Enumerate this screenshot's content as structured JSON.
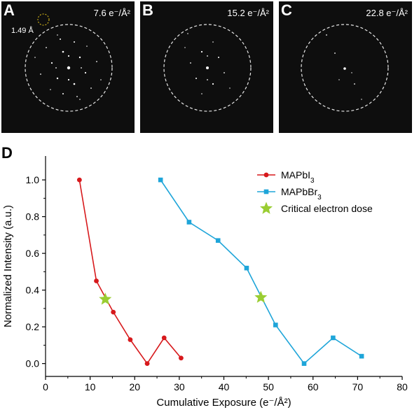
{
  "panels": [
    {
      "letter": "A",
      "dose": "7.6 e⁻/Å²",
      "resolution": "1.49 Å"
    },
    {
      "letter": "B",
      "dose": "15.2 e⁻/Å²"
    },
    {
      "letter": "C",
      "dose": "22.8 e⁻/Å²"
    }
  ],
  "panel_d_letter": "D",
  "chart_data": {
    "type": "line",
    "xlabel": "Cumulative Exposure (e⁻/Å²)",
    "ylabel": "Normalized Intensity (a.u.)",
    "xlim": [
      0,
      80
    ],
    "ylim": [
      -0.07,
      1.13
    ],
    "xticks": [
      "0",
      "10",
      "20",
      "30",
      "40",
      "50",
      "60",
      "70",
      "80"
    ],
    "yticks": [
      "0.0",
      "0.2",
      "0.4",
      "0.6",
      "0.8",
      "1.0"
    ],
    "legend_position": "top-right",
    "series": [
      {
        "name": "MAPbI3",
        "color": "#d7191c",
        "marker": "circle",
        "x": [
          7.6,
          11.4,
          15.2,
          19.0,
          22.8,
          26.6,
          30.4
        ],
        "y": [
          1.0,
          0.45,
          0.28,
          0.13,
          0.0,
          0.14,
          0.03
        ]
      },
      {
        "name": "MAPbBr3",
        "color": "#1ea5d9",
        "marker": "square",
        "x": [
          25.8,
          32.2,
          38.7,
          45.1,
          51.6,
          58.0,
          64.5,
          70.9
        ],
        "y": [
          1.0,
          0.77,
          0.67,
          0.52,
          0.21,
          0.0,
          0.14,
          0.04
        ]
      },
      {
        "name": "Critical electron dose",
        "color": "#9acd32",
        "marker": "star",
        "x": [
          13.4,
          48.3
        ],
        "y": [
          0.35,
          0.36
        ]
      }
    ]
  }
}
